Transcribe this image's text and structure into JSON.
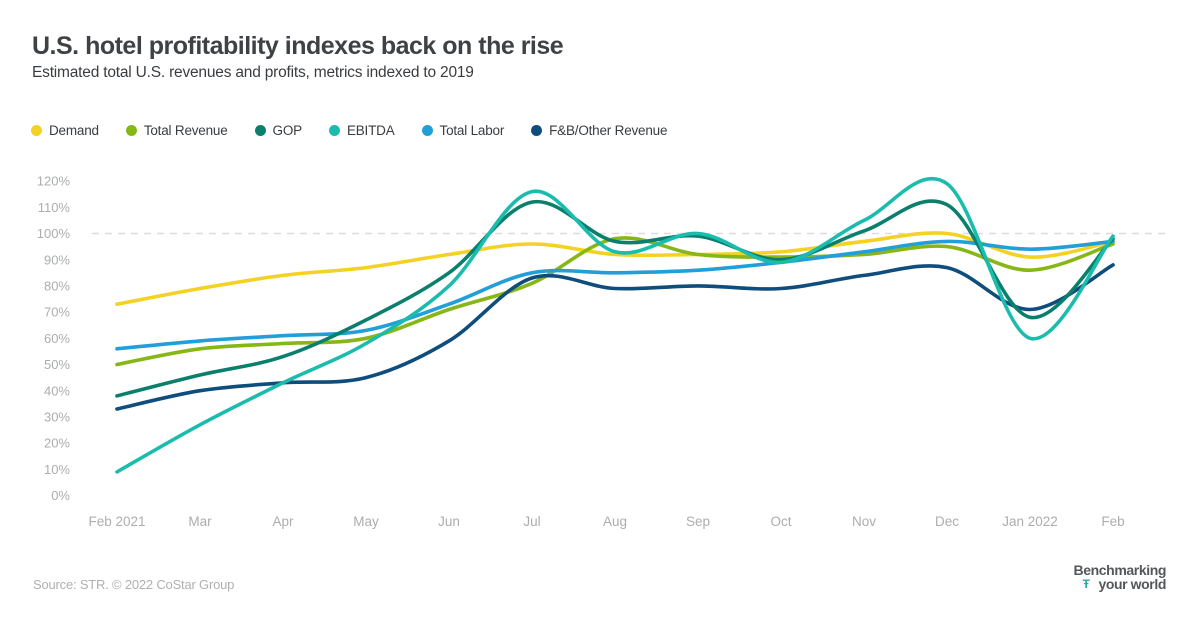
{
  "header": {
    "title": "U.S. hotel profitability indexes back on the rise",
    "subtitle": "Estimated total U.S. revenues and profits, metrics indexed to 2019"
  },
  "legend": {
    "items": [
      {
        "label": "Demand",
        "color": "#f3d224"
      },
      {
        "label": "Total Revenue",
        "color": "#87b717"
      },
      {
        "label": "GOP",
        "color": "#097f6c"
      },
      {
        "label": "EBITDA",
        "color": "#1abcae"
      },
      {
        "label": "Total Labor",
        "color": "#229fd9"
      },
      {
        "label": "F&B/Other Revenue",
        "color": "#0f4d7d"
      }
    ]
  },
  "chart_data": {
    "type": "line",
    "title": "U.S. hotel profitability indexes back on the rise",
    "xlabel": "",
    "ylabel": "",
    "categories": [
      "Feb 2021",
      "Mar",
      "Apr",
      "May",
      "Jun",
      "Jul",
      "Aug",
      "Sep",
      "Oct",
      "Nov",
      "Dec",
      "Jan 2022",
      "Feb"
    ],
    "y_ticks": [
      0,
      10,
      20,
      30,
      40,
      50,
      60,
      70,
      80,
      90,
      100,
      110,
      120
    ],
    "y_tick_suffix": "%",
    "ylim": [
      0,
      120
    ],
    "grid": false,
    "legend_position": "top",
    "reference_line": {
      "value": 100,
      "style": "dashed",
      "color": "#dcdcdc"
    },
    "draw_order": [
      0,
      1,
      4,
      5,
      2,
      3
    ],
    "series": [
      {
        "name": "Demand",
        "color": "#f3d224",
        "values": [
          73,
          79,
          84,
          87,
          92,
          96,
          92,
          92,
          93,
          97,
          100,
          91,
          97
        ]
      },
      {
        "name": "Total Revenue",
        "color": "#87b717",
        "values": [
          50,
          56,
          58,
          60,
          71,
          81,
          98,
          92,
          91,
          92,
          95,
          86,
          96
        ]
      },
      {
        "name": "GOP",
        "color": "#097f6c",
        "values": [
          38,
          46,
          53,
          67,
          85,
          112,
          97,
          99,
          90,
          101,
          111,
          68,
          98
        ]
      },
      {
        "name": "EBITDA",
        "color": "#1abcae",
        "values": [
          9,
          27,
          43,
          58,
          80,
          116,
          93,
          100,
          89,
          105,
          119,
          60,
          99
        ]
      },
      {
        "name": "Total Labor",
        "color": "#229fd9",
        "values": [
          56,
          59,
          61,
          63,
          73,
          85,
          85,
          86,
          89,
          93,
          97,
          94,
          97
        ]
      },
      {
        "name": "F&B/Other Revenue",
        "color": "#0f4d7d",
        "values": [
          33,
          40,
          43,
          45,
          59,
          83,
          79,
          80,
          79,
          84,
          87,
          71,
          88
        ]
      }
    ]
  },
  "footer": {
    "source": "Source: STR. © 2022 CoStar Group",
    "logo_line1": "Benchmarking",
    "logo_line2": "your world",
    "logo_mark": "Ŧ"
  }
}
